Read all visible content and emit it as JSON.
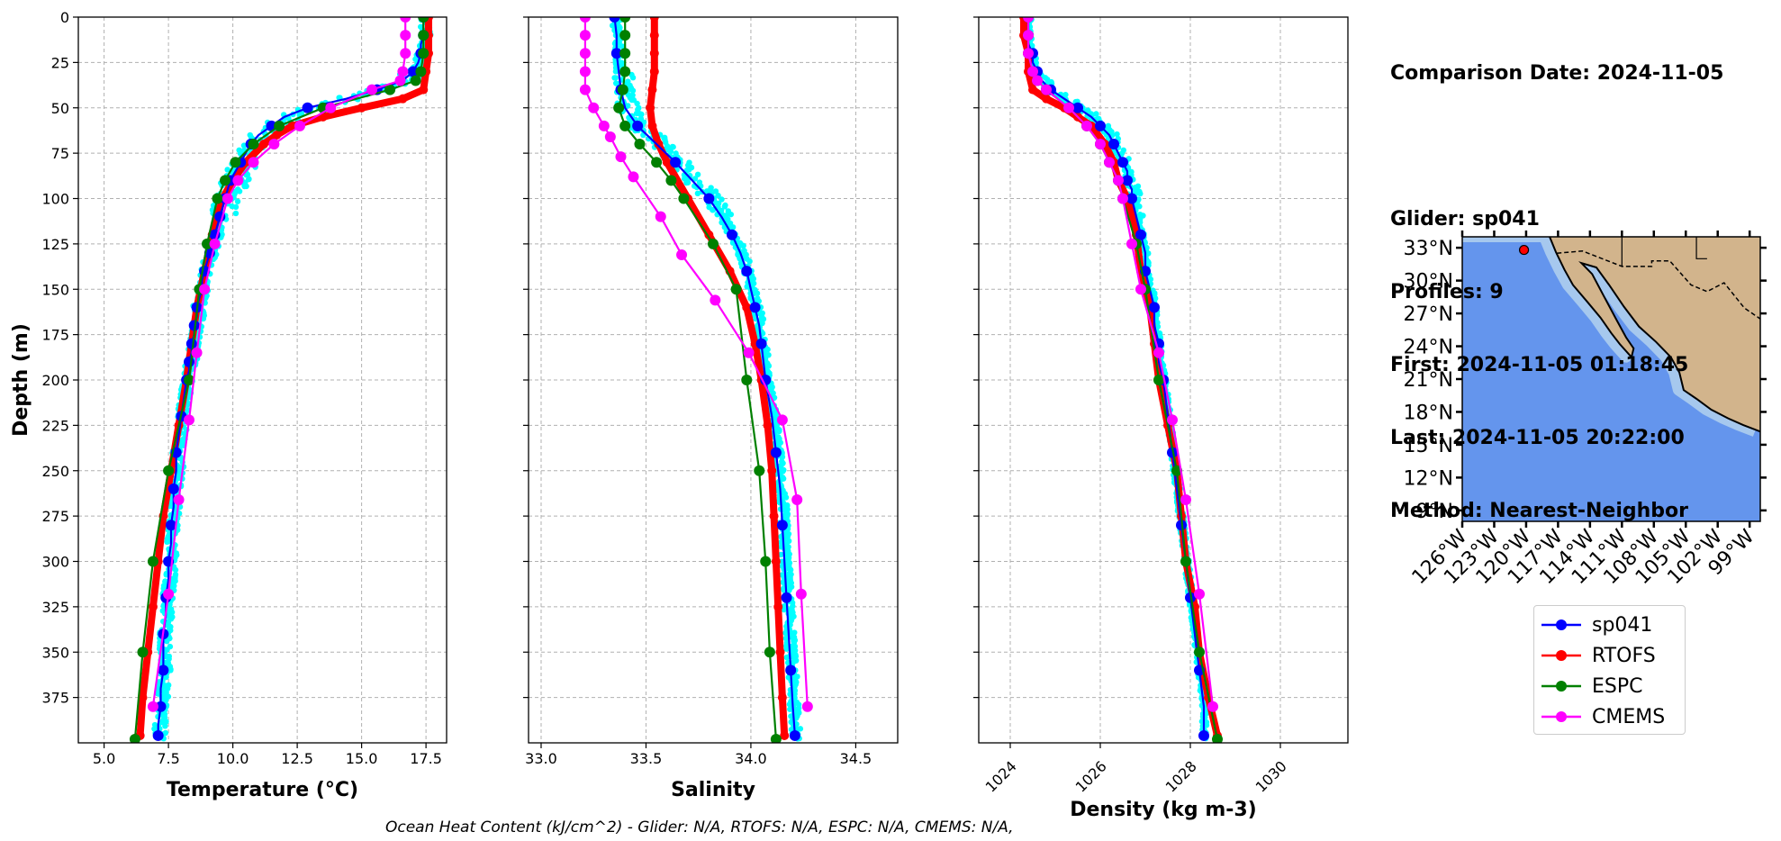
{
  "figure": {
    "ohc_note": "Ocean Heat Content (kJ/cm^2) - Glider: N/A,  RTOFS: N/A,  ESPC: N/A,  CMEMS: N/A,"
  },
  "info": {
    "comparison_date": "Comparison Date: 2024-11-05",
    "glider": "Glider: sp041",
    "profiles": "Profiles: 9",
    "first": "First: 2024-11-05 01:18:45",
    "last": "Last: 2024-11-05 20:22:00",
    "method": "Method: Nearest-Neighbor"
  },
  "legend": [
    {
      "name": "sp041",
      "color": "#0000ff"
    },
    {
      "name": "RTOFS",
      "color": "#ff0000"
    },
    {
      "name": "ESPC",
      "color": "#008000"
    },
    {
      "name": "CMEMS",
      "color": "#ff00ff"
    }
  ],
  "colors": {
    "glider_points": "#00ffff",
    "land": "#d2b48c",
    "ocean": "#6495ed",
    "shelf": "#a6c8ee"
  },
  "map": {
    "lat_labels": [
      "33°N",
      "30°N",
      "27°N",
      "24°N",
      "21°N",
      "18°N",
      "15°N",
      "12°N",
      "9°N"
    ],
    "lat_values": [
      33,
      30,
      27,
      24,
      21,
      18,
      15,
      12,
      9
    ],
    "lon_labels": [
      "126°W",
      "123°W",
      "120°W",
      "117°W",
      "114°W",
      "111°W",
      "108°W",
      "105°W",
      "102°W",
      "99°W"
    ],
    "lon_values": [
      -126,
      -123,
      -120,
      -117,
      -114,
      -111,
      -108,
      -105,
      -102,
      -99
    ],
    "extent": {
      "lon_min": -126,
      "lon_max": -98,
      "lat_min": 8,
      "lat_max": 34
    },
    "glider_location": {
      "lon": -120.2,
      "lat": 32.8
    }
  },
  "chart_data": [
    {
      "type": "line",
      "xlabel": "Temperature (°C)",
      "ylabel": "Depth (m)",
      "xlim": [
        4.0,
        18.3
      ],
      "ylim": [
        400,
        0
      ],
      "xticks": [
        5.0,
        7.5,
        10.0,
        12.5,
        15.0,
        17.5
      ],
      "xtick_labels": [
        "5.0",
        "7.5",
        "10.0",
        "12.5",
        "15.0",
        "17.5"
      ],
      "yticks": [
        0,
        25,
        50,
        75,
        100,
        125,
        150,
        175,
        200,
        225,
        250,
        275,
        300,
        325,
        350,
        375
      ],
      "ytick_labels": [
        "0",
        "25",
        "50",
        "75",
        "100",
        "125",
        "150",
        "175",
        "200",
        "225",
        "250",
        "275",
        "300",
        "325",
        "350",
        "375"
      ],
      "grid": true,
      "series": [
        {
          "name": "sp041",
          "depth": [
            0,
            5,
            10,
            15,
            20,
            25,
            30,
            35,
            40,
            45,
            50,
            55,
            60,
            65,
            70,
            75,
            80,
            85,
            90,
            95,
            100,
            105,
            110,
            115,
            120,
            125,
            130,
            135,
            140,
            145,
            150,
            155,
            160,
            165,
            170,
            175,
            180,
            185,
            190,
            195,
            200,
            210,
            220,
            230,
            240,
            250,
            260,
            270,
            280,
            290,
            300,
            310,
            320,
            330,
            340,
            350,
            360,
            370,
            380,
            390,
            396
          ],
          "values": [
            17.4,
            17.4,
            17.4,
            17.3,
            17.3,
            17.2,
            17.0,
            16.6,
            15.6,
            14.4,
            12.9,
            12.0,
            11.5,
            11.0,
            10.7,
            10.5,
            10.3,
            10.1,
            9.9,
            9.8,
            9.7,
            9.6,
            9.5,
            9.4,
            9.3,
            9.2,
            9.1,
            9.0,
            8.9,
            8.8,
            8.8,
            8.7,
            8.6,
            8.6,
            8.5,
            8.5,
            8.4,
            8.4,
            8.3,
            8.3,
            8.2,
            8.1,
            8.0,
            7.9,
            7.8,
            7.8,
            7.7,
            7.7,
            7.6,
            7.6,
            7.5,
            7.5,
            7.4,
            7.4,
            7.3,
            7.3,
            7.3,
            7.2,
            7.2,
            7.1,
            7.1
          ]
        },
        {
          "name": "RTOFS",
          "depth": [
            0,
            10,
            20,
            30,
            40,
            45,
            50,
            55,
            60,
            65,
            70,
            80,
            90,
            100,
            120,
            140,
            160,
            180,
            200,
            225,
            250,
            275,
            300,
            325,
            350,
            375,
            396
          ],
          "values": [
            17.6,
            17.6,
            17.6,
            17.5,
            17.4,
            16.6,
            15.0,
            13.5,
            12.3,
            11.7,
            11.2,
            10.5,
            10.0,
            9.6,
            9.2,
            8.9,
            8.6,
            8.4,
            8.2,
            7.9,
            7.6,
            7.3,
            7.1,
            6.9,
            6.7,
            6.5,
            6.4
          ]
        },
        {
          "name": "ESPC",
          "depth": [
            0,
            10,
            20,
            30,
            35,
            40,
            50,
            60,
            70,
            80,
            90,
            100,
            125,
            150,
            200,
            250,
            300,
            350,
            398
          ],
          "values": [
            17.4,
            17.4,
            17.4,
            17.3,
            17.1,
            16.1,
            13.5,
            11.8,
            10.8,
            10.1,
            9.7,
            9.4,
            9.0,
            8.7,
            8.3,
            7.5,
            6.9,
            6.5,
            6.2
          ]
        },
        {
          "name": "CMEMS",
          "depth": [
            0,
            10,
            20,
            30,
            35,
            40,
            50,
            60,
            70,
            80,
            90,
            100,
            125,
            150,
            185,
            222,
            266,
            318,
            380
          ],
          "values": [
            16.7,
            16.7,
            16.7,
            16.6,
            16.5,
            15.4,
            13.8,
            12.6,
            11.6,
            10.8,
            10.2,
            9.8,
            9.3,
            8.9,
            8.6,
            8.3,
            7.9,
            7.5,
            6.9
          ]
        }
      ]
    },
    {
      "type": "line",
      "xlabel": "Salinity",
      "xlim": [
        32.94,
        34.7
      ],
      "ylim": [
        400,
        0
      ],
      "xticks": [
        33.0,
        33.5,
        34.0,
        34.5
      ],
      "xtick_labels": [
        "33.0",
        "33.5",
        "34.0",
        "34.5"
      ],
      "grid": true,
      "series": [
        {
          "name": "sp041",
          "depth": [
            0,
            10,
            20,
            30,
            40,
            50,
            60,
            70,
            80,
            90,
            100,
            110,
            120,
            130,
            140,
            150,
            160,
            170,
            180,
            190,
            200,
            220,
            240,
            260,
            280,
            300,
            320,
            340,
            360,
            380,
            396
          ],
          "values": [
            33.35,
            33.36,
            33.36,
            33.37,
            33.38,
            33.4,
            33.46,
            33.55,
            33.64,
            33.72,
            33.8,
            33.86,
            33.91,
            33.95,
            33.98,
            34.0,
            34.02,
            34.04,
            34.05,
            34.06,
            34.07,
            34.1,
            34.12,
            34.14,
            34.15,
            34.16,
            34.17,
            34.18,
            34.19,
            34.2,
            34.21
          ]
        },
        {
          "name": "RTOFS",
          "depth": [
            0,
            10,
            20,
            30,
            40,
            50,
            60,
            70,
            80,
            100,
            120,
            140,
            160,
            180,
            200,
            225,
            250,
            275,
            300,
            325,
            350,
            375,
            396
          ],
          "values": [
            33.54,
            33.54,
            33.54,
            33.54,
            33.53,
            33.52,
            33.53,
            33.56,
            33.6,
            33.7,
            33.8,
            33.9,
            33.98,
            34.02,
            34.05,
            34.08,
            34.1,
            34.11,
            34.12,
            34.13,
            34.14,
            34.15,
            34.16
          ]
        },
        {
          "name": "ESPC",
          "depth": [
            0,
            10,
            20,
            30,
            40,
            50,
            60,
            70,
            80,
            90,
            100,
            125,
            150,
            200,
            250,
            300,
            350,
            398
          ],
          "values": [
            33.4,
            33.4,
            33.4,
            33.4,
            33.39,
            33.37,
            33.4,
            33.47,
            33.55,
            33.62,
            33.68,
            33.82,
            33.93,
            33.98,
            34.04,
            34.07,
            34.09,
            34.12
          ]
        },
        {
          "name": "CMEMS",
          "depth": [
            0,
            10,
            20,
            30,
            40,
            50,
            60,
            66,
            77,
            88,
            110,
            131,
            156,
            185,
            222,
            266,
            318,
            380
          ],
          "values": [
            33.21,
            33.21,
            33.21,
            33.21,
            33.21,
            33.25,
            33.3,
            33.33,
            33.38,
            33.44,
            33.57,
            33.67,
            33.83,
            33.99,
            34.15,
            34.22,
            34.24,
            34.27
          ]
        }
      ]
    },
    {
      "type": "line",
      "xlabel": "Density (kg m-3)",
      "xlim": [
        1023.3,
        1031.5
      ],
      "ylim": [
        400,
        0
      ],
      "xticks": [
        1024,
        1026,
        1028,
        1030
      ],
      "xtick_labels": [
        "1024",
        "1026",
        "1028",
        "1030"
      ],
      "grid": true,
      "series": [
        {
          "name": "sp041",
          "depth": [
            0,
            5,
            10,
            15,
            20,
            25,
            30,
            35,
            40,
            45,
            50,
            55,
            60,
            65,
            70,
            75,
            80,
            85,
            90,
            95,
            100,
            110,
            120,
            130,
            140,
            150,
            160,
            170,
            180,
            190,
            200,
            220,
            240,
            260,
            280,
            300,
            320,
            340,
            360,
            380,
            396
          ],
          "values": [
            1024.4,
            1024.4,
            1024.4,
            1024.4,
            1024.5,
            1024.5,
            1024.6,
            1024.7,
            1024.9,
            1025.2,
            1025.5,
            1025.8,
            1026.0,
            1026.2,
            1026.3,
            1026.4,
            1026.5,
            1026.6,
            1026.6,
            1026.7,
            1026.7,
            1026.8,
            1026.9,
            1027.0,
            1027.0,
            1027.1,
            1027.2,
            1027.2,
            1027.3,
            1027.3,
            1027.4,
            1027.5,
            1027.6,
            1027.7,
            1027.8,
            1027.9,
            1028.0,
            1028.1,
            1028.2,
            1028.3,
            1028.3
          ]
        },
        {
          "name": "RTOFS",
          "depth": [
            0,
            10,
            20,
            30,
            40,
            45,
            50,
            55,
            60,
            70,
            80,
            90,
            100,
            120,
            140,
            160,
            180,
            200,
            225,
            250,
            275,
            300,
            325,
            350,
            375,
            396
          ],
          "values": [
            1024.3,
            1024.3,
            1024.4,
            1024.4,
            1024.5,
            1024.8,
            1025.2,
            1025.5,
            1025.8,
            1026.1,
            1026.3,
            1026.4,
            1026.6,
            1026.8,
            1026.9,
            1027.1,
            1027.2,
            1027.3,
            1027.5,
            1027.7,
            1027.8,
            1027.9,
            1028.1,
            1028.2,
            1028.4,
            1028.6
          ]
        },
        {
          "name": "ESPC",
          "depth": [
            0,
            10,
            20,
            30,
            35,
            40,
            50,
            60,
            70,
            80,
            90,
            100,
            125,
            150,
            200,
            250,
            300,
            350,
            398
          ],
          "values": [
            1024.4,
            1024.4,
            1024.4,
            1024.5,
            1024.6,
            1024.8,
            1025.3,
            1025.7,
            1026.0,
            1026.2,
            1026.4,
            1026.5,
            1026.8,
            1027.0,
            1027.3,
            1027.7,
            1027.9,
            1028.2,
            1028.6
          ]
        },
        {
          "name": "CMEMS",
          "depth": [
            0,
            10,
            20,
            30,
            35,
            40,
            50,
            60,
            70,
            80,
            90,
            100,
            125,
            150,
            185,
            222,
            266,
            318,
            380
          ],
          "values": [
            1024.4,
            1024.4,
            1024.4,
            1024.5,
            1024.6,
            1024.8,
            1025.3,
            1025.7,
            1026.0,
            1026.2,
            1026.4,
            1026.5,
            1026.7,
            1026.9,
            1027.3,
            1027.6,
            1027.9,
            1028.2,
            1028.5
          ]
        }
      ]
    }
  ]
}
